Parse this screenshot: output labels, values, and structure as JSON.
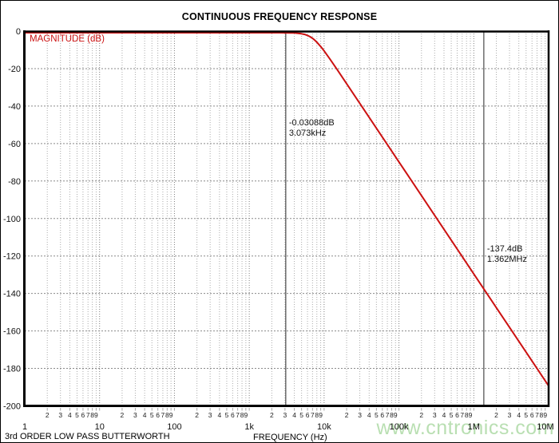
{
  "header": {
    "title": "CONTINUOUS FREQUENCY RESPONSE"
  },
  "footer": {
    "left_note": "3rd ORDER LOW PASS BUTTERWORTH",
    "watermark": "www.cntronics.com"
  },
  "colors": {
    "curve": "#cc1111",
    "magnitude_label": "#cc1111",
    "watermark": "#b9dfb2",
    "grid_minor": "#ababab",
    "grid_decade": "#7d7d7d",
    "grid_horizontal": "#8a8a8a",
    "cursor": "#4a4a4a",
    "border": "#000000",
    "tick_label": "#111111"
  },
  "chart_data": {
    "type": "line",
    "title": "CONTINUOUS FREQUENCY RESPONSE",
    "xlabel": "FREQUENCY (Hz)",
    "ylabel": "MAGNITUDE (dB)",
    "x_scale": "log",
    "x_range_hz": [
      1,
      10000000
    ],
    "y_range_db": [
      -200,
      0
    ],
    "grid": true,
    "y_tick_labels": [
      "0",
      "-20",
      "-40",
      "-60",
      "-80",
      "-100",
      "-120",
      "-140",
      "-160",
      "-180",
      "-200"
    ],
    "y_tick_values": [
      0,
      -20,
      -40,
      -60,
      -80,
      -100,
      -120,
      -140,
      -160,
      -180,
      -200
    ],
    "x_decade_labels": [
      "1",
      "10",
      "100",
      "1k",
      "10k",
      "100k",
      "1M",
      "10M"
    ],
    "x_minor_digits": [
      2,
      3,
      4,
      5,
      6,
      7,
      8,
      9
    ],
    "series": [
      {
        "name": "3rd order Butterworth low-pass magnitude",
        "color": "#cc1111",
        "points": [
          [
            1,
            0
          ],
          [
            10,
            0
          ],
          [
            100,
            0
          ],
          [
            1000,
            -4e-05
          ],
          [
            2000,
            -0.0023
          ],
          [
            2500,
            -0.0089
          ],
          [
            3073,
            -0.03088
          ],
          [
            3500,
            -0.0669
          ],
          [
            4000,
            -0.1476
          ],
          [
            4500,
            -0.294
          ],
          [
            5000,
            -0.5385
          ],
          [
            5500,
            -0.912
          ],
          [
            6000,
            -1.443
          ],
          [
            6500,
            -2.14
          ],
          [
            7008,
            -3.01
          ],
          [
            7500,
            -3.98
          ],
          [
            8000,
            -5.07
          ],
          [
            9000,
            -7.39
          ],
          [
            10000,
            -9.75
          ],
          [
            12000,
            -14.19
          ],
          [
            15000,
            -19.87
          ],
          [
            20000,
            -27.33
          ],
          [
            30000,
            -37.89
          ],
          [
            50000,
            -51.2
          ],
          [
            70000,
            -59.96
          ],
          [
            100000,
            -69.27
          ],
          [
            150000,
            -79.83
          ],
          [
            200000,
            -87.31
          ],
          [
            300000,
            -97.88
          ],
          [
            500000,
            -111.18
          ],
          [
            700000,
            -119.94
          ],
          [
            1000000,
            -129.27
          ],
          [
            1362000,
            -137.35
          ],
          [
            2000000,
            -147.33
          ],
          [
            3000000,
            -157.9
          ],
          [
            5000000,
            -171.2
          ],
          [
            7000000,
            -179.96
          ],
          [
            10000000,
            -189.27
          ]
        ]
      }
    ],
    "cursors": [
      {
        "freq_hz": 3073,
        "label_db": "-0.03088dB",
        "label_freq": "3.073kHz"
      },
      {
        "freq_hz": 1362000,
        "label_db": "-137.4dB",
        "label_freq": "1.362MHz"
      }
    ]
  }
}
